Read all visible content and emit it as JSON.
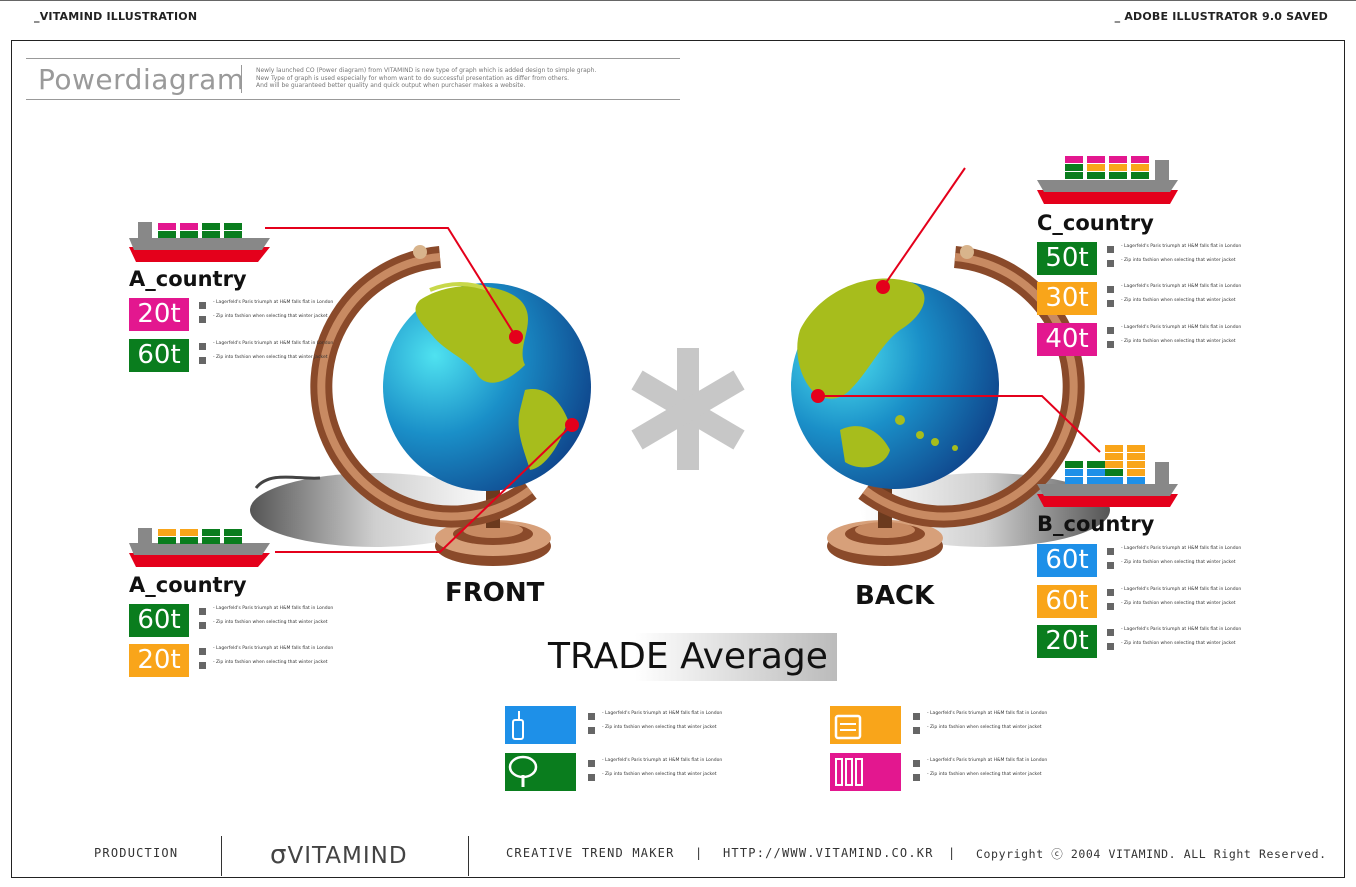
{
  "header": {
    "left": "_VITAMIND ILLUSTRATION",
    "right": "_ ADOBE ILLUSTRATOR 9.0 SAVED"
  },
  "title": {
    "main": "Powerdiagram",
    "desc1": "Newly launched CO (Power diagram) from VITAMIND is new type of graph which is added design to simple graph.",
    "desc2": "New Type of graph is used especially for whom want to do successful presentation as differ from others.",
    "desc3": "And will be guaranteed better quality and quick output when purchaser makes a website."
  },
  "bullet": {
    "line1": "- Lagerfeld's Paris triumph at H&M falls flat in London",
    "line2": "- Zip into fashion when selecting that winter jacket"
  },
  "countries": {
    "a_top": {
      "name": "A_country",
      "v1": "20t",
      "v2": "60t"
    },
    "a_bottom": {
      "name": "A_country",
      "v1": "60t",
      "v2": "20t"
    },
    "c": {
      "name": "C_country",
      "v1": "50t",
      "v2": "30t",
      "v3": "40t"
    },
    "b": {
      "name": "B_country",
      "v1": "60t",
      "v2": "60t",
      "v3": "20t"
    }
  },
  "globes": {
    "front": "FRONT",
    "back": "BACK"
  },
  "trade": "TRADE Average",
  "icons": {
    "phone": "phone-icon",
    "tree": "tree-icon",
    "fax": "fax-icon",
    "tools": "tools-icon"
  },
  "footer": {
    "production": "PRODUCTION",
    "logo": "VITAMIND",
    "slogan": "CREATIVE TREND MAKER",
    "sep1": "|",
    "url": "HTTP://WWW.VITAMIND.CO.KR",
    "sep2": "|",
    "copyright": "Copyright ⓒ 2004 VITAMIND. ALL Right Reserved."
  },
  "colors": {
    "magenta": "#e3178f",
    "green": "#0a7d1e",
    "orange": "#f9a51a",
    "blue": "#1e90e8",
    "red": "#e4001b"
  }
}
